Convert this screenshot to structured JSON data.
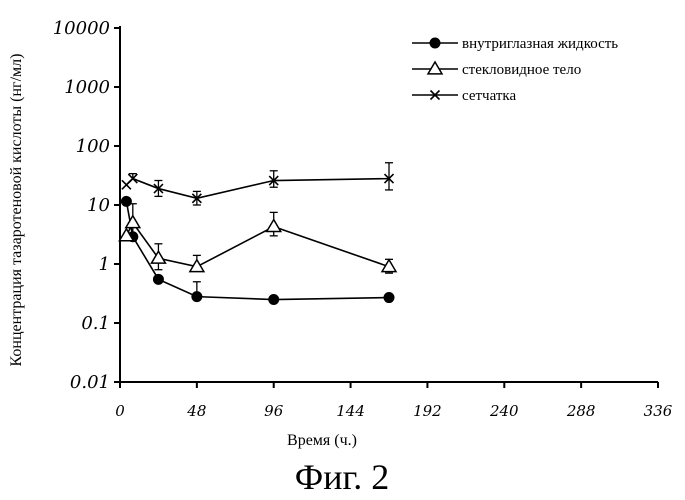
{
  "chart_data": {
    "type": "line",
    "title": "",
    "caption": "Фиг. 2",
    "xlabel": "Время (ч.)",
    "ylabel": "Концентрация тазаротеновой кислоты (нг/мл)",
    "y_scale": "log",
    "ylim": [
      0.01,
      10000
    ],
    "xlim": [
      0,
      336
    ],
    "x_ticks": [
      0,
      48,
      96,
      144,
      192,
      240,
      288,
      336
    ],
    "x_tick_labels": [
      "0",
      "48",
      "96",
      "144",
      "192",
      "240",
      "288",
      "336"
    ],
    "y_ticks": [
      0.01,
      0.1,
      1,
      10,
      100,
      1000,
      10000
    ],
    "y_tick_labels": [
      "0.01",
      "0.1",
      "1",
      "10",
      "100",
      "1000",
      "10000"
    ],
    "grid": false,
    "legend_position": "top-right",
    "series": [
      {
        "name": "внутриглазная жидкость",
        "marker": "filled-circle",
        "x": [
          4,
          8,
          24,
          48,
          96,
          168
        ],
        "y": [
          11.5,
          2.9,
          0.55,
          0.28,
          0.25,
          0.27
        ],
        "err_hi": [
          null,
          null,
          null,
          0.5,
          null,
          null
        ],
        "err_lo": [
          null,
          null,
          null,
          null,
          null,
          null
        ]
      },
      {
        "name": "стекловидное тело",
        "marker": "open-triangle",
        "x": [
          4,
          8,
          24,
          48,
          96,
          168
        ],
        "y": [
          3.0,
          5.0,
          1.25,
          0.9,
          4.3,
          0.9
        ],
        "err_hi": [
          null,
          10.5,
          2.2,
          1.4,
          7.5,
          1.2
        ],
        "err_lo": [
          null,
          2.5,
          0.8,
          null,
          3.0,
          0.7
        ]
      },
      {
        "name": "сетчатка",
        "marker": "cross",
        "x": [
          4,
          8,
          24,
          48,
          96,
          168
        ],
        "y": [
          22,
          28,
          19,
          13,
          26,
          28
        ],
        "err_hi": [
          null,
          34,
          26,
          17,
          38,
          52
        ],
        "err_lo": [
          null,
          null,
          14,
          10,
          20,
          18
        ]
      }
    ]
  }
}
